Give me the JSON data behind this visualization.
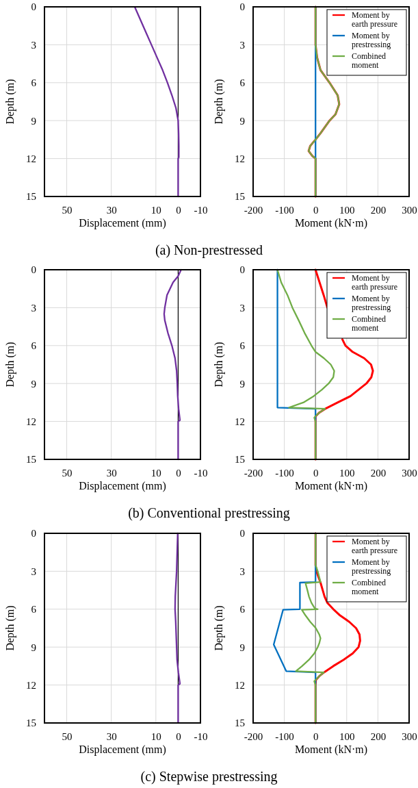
{
  "chart_data": [
    {
      "type": "line",
      "title": "(a) Non-prestressed",
      "xlabel": "Displacement (mm)",
      "ylabel": "Depth (m)",
      "xlim": [
        60,
        -10
      ],
      "xticks": [
        50,
        30,
        10,
        0,
        -10
      ],
      "ylim": [
        15,
        0
      ],
      "yticks": [
        0,
        3,
        6,
        9,
        12,
        15
      ],
      "grid": true,
      "legend": false,
      "ref_lines": [
        {
          "axis": "x",
          "value": 0,
          "color": "#000000"
        }
      ],
      "series": [
        {
          "color": "#7030a0",
          "x": [
            19.5,
            17,
            14.5,
            12,
            9.5,
            7,
            4.8,
            2.8,
            1,
            0,
            -0.2,
            -0.3,
            -0.3,
            0,
            0
          ],
          "values": [
            0,
            1,
            2,
            3,
            4,
            5,
            6,
            7,
            8,
            9,
            10,
            11,
            11.9,
            12,
            15
          ]
        }
      ]
    },
    {
      "type": "line",
      "xlabel": "Moment (kN·m)",
      "ylabel": "Depth (m)",
      "xlim": [
        -200,
        300
      ],
      "xticks": [
        -200,
        -100,
        0,
        100,
        200,
        300
      ],
      "ylim": [
        15,
        0
      ],
      "yticks": [
        0,
        3,
        6,
        9,
        12,
        15
      ],
      "grid": true,
      "legend": "top right",
      "series": [
        {
          "name": "Moment by earth pressure",
          "color": "#ff0000",
          "x": [
            0,
            0,
            5,
            16,
            45,
            71,
            76,
            64,
            45,
            16,
            0,
            -17,
            -22,
            -10,
            0,
            0
          ],
          "values": [
            0,
            3,
            4,
            5,
            6,
            7,
            7.7,
            8.5,
            9,
            10,
            10.5,
            11,
            11.4,
            11.8,
            12,
            15
          ]
        },
        {
          "name": "Moment by prestressing",
          "color": "#0070c0",
          "x": [
            0,
            0
          ],
          "values": [
            0,
            15
          ]
        },
        {
          "name": "Combined moment",
          "color": "#70ad47",
          "x": [
            0,
            0,
            5,
            16,
            45,
            71,
            76,
            64,
            45,
            16,
            0,
            -17,
            -22,
            -10,
            0,
            0
          ],
          "values": [
            0,
            3,
            4,
            5,
            6,
            7,
            7.7,
            8.5,
            9,
            10,
            10.5,
            11,
            11.4,
            11.8,
            12,
            15
          ]
        }
      ]
    },
    {
      "type": "line",
      "title": "(b) Conventional prestressing",
      "xlabel": "Displacement (mm)",
      "ylabel": "Depth (m)",
      "xlim": [
        60,
        -10
      ],
      "xticks": [
        50,
        30,
        10,
        0,
        -10
      ],
      "ylim": [
        15,
        0
      ],
      "yticks": [
        0,
        3,
        6,
        9,
        12,
        15
      ],
      "grid": true,
      "legend": false,
      "ref_lines": [
        {
          "axis": "x",
          "value": 0,
          "color": "#000000"
        }
      ],
      "series": [
        {
          "color": "#7030a0",
          "x": [
            -1.3,
            0,
            2.3,
            5,
            6,
            6.3,
            6,
            4.6,
            2.8,
            1.4,
            0.7,
            0.4,
            0.2,
            -0.2,
            -0.8,
            0,
            0
          ],
          "values": [
            0,
            0.5,
            1,
            2,
            3,
            3.5,
            4,
            5,
            6,
            7,
            8,
            9,
            10,
            11,
            11.9,
            12,
            15
          ]
        }
      ]
    },
    {
      "type": "line",
      "xlabel": "Moment (kN·m)",
      "ylabel": "Depth (m)",
      "xlim": [
        -200,
        300
      ],
      "xticks": [
        -200,
        -100,
        0,
        100,
        200,
        300
      ],
      "ylim": [
        15,
        0
      ],
      "yticks": [
        0,
        3,
        6,
        9,
        12,
        15
      ],
      "grid": true,
      "legend": "top right",
      "ref_lines": [
        {
          "axis": "x",
          "value": 0,
          "color": "#808080"
        }
      ],
      "series": [
        {
          "name": "Moment by earth pressure",
          "color": "#ff0000",
          "x": [
            0,
            13,
            26,
            38,
            null,
            86,
            96,
            119,
            156,
            178,
            184,
            179,
            163,
            112,
            71,
            31,
            12,
            0,
            0
          ],
          "values": [
            0,
            1,
            2,
            3,
            null,
            5.5,
            6,
            6.5,
            7,
            7.5,
            8,
            8.5,
            9,
            10,
            10.5,
            11,
            11.3,
            11.6,
            15
          ]
        },
        {
          "name": "Moment by prestressing",
          "color": "#0070c0",
          "x": [
            -122,
            -122,
            0,
            0
          ],
          "values": [
            0,
            10.9,
            11,
            15
          ]
        },
        {
          "name": "Combined moment",
          "color": "#70ad47",
          "x": [
            -122,
            -110,
            -90,
            -74,
            -54,
            -35,
            -13,
            0,
            27,
            49,
            60,
            57,
            42,
            20,
            -6,
            -39,
            -85,
            31,
            12,
            -4,
            0,
            0
          ],
          "values": [
            0,
            1,
            2,
            3,
            4,
            5,
            6,
            6.5,
            7,
            7.5,
            8,
            8.5,
            9,
            9.5,
            10,
            10.5,
            10.9,
            11,
            11.3,
            11.7,
            12,
            15
          ]
        }
      ]
    },
    {
      "type": "line",
      "title": "(c) Stepwise prestressing",
      "xlabel": "Displacement (mm)",
      "ylabel": "Depth (m)",
      "xlim": [
        60,
        -10
      ],
      "xticks": [
        50,
        30,
        10,
        0,
        -10
      ],
      "ylim": [
        15,
        0
      ],
      "yticks": [
        0,
        3,
        6,
        9,
        12,
        15
      ],
      "grid": true,
      "legend": false,
      "ref_lines": [
        {
          "axis": "x",
          "value": 0,
          "color": "#000000"
        }
      ],
      "series": [
        {
          "color": "#7030a0",
          "x": [
            0.2,
            0.7,
            1.3,
            1.4,
            1.1,
            0.7,
            0.5,
            -0.1,
            -0.8,
            0,
            0
          ],
          "values": [
            0,
            3,
            5,
            6,
            7,
            9,
            10,
            11,
            11.9,
            12,
            15
          ]
        }
      ]
    },
    {
      "type": "line",
      "xlabel": "Moment (kN·m)",
      "ylabel": "Depth (m)",
      "xlim": [
        -200,
        300
      ],
      "xticks": [
        -200,
        -100,
        0,
        100,
        200,
        300
      ],
      "ylim": [
        15,
        0
      ],
      "yticks": [
        0,
        3,
        6,
        9,
        12,
        15
      ],
      "grid": true,
      "legend": "top right",
      "ref_lines": [
        {
          "axis": "x",
          "value": 0,
          "color": "#808080"
        }
      ],
      "series": [
        {
          "name": "Moment by earth pressure",
          "color": "#ff0000",
          "x": [
            0,
            0,
            3,
            16,
            29,
            38,
            57,
            79,
            108,
            130,
            141,
            143,
            138,
            119,
            90,
            57,
            27,
            12,
            1,
            0,
            0
          ],
          "values": [
            0,
            2.5,
            3,
            3.9,
            5,
            5.5,
            6,
            6.5,
            7,
            7.5,
            8,
            8.5,
            9,
            9.5,
            10,
            10.5,
            11,
            11.3,
            11.6,
            12,
            15
          ]
        },
        {
          "name": "Moment by prestressing",
          "color": "#0070c0",
          "x": [
            0,
            0,
            -50,
            -50,
            -104,
            -134,
            -94,
            0,
            0
          ],
          "values": [
            0,
            3.85,
            3.9,
            6,
            6.05,
            8.8,
            10.9,
            11,
            15
          ]
        },
        {
          "name": "Combined moment",
          "color": "#70ad47",
          "x": [
            0,
            0,
            7,
            16,
            -32,
            -26,
            -21,
            -13,
            -2,
            7,
            -44,
            -32,
            -17,
            1,
            12,
            16,
            12,
            7,
            -4,
            -21,
            -43,
            -63,
            27,
            12,
            0,
            -4,
            0,
            0
          ],
          "values": [
            0,
            2.5,
            3,
            3.85,
            3.95,
            4.5,
            5,
            5.5,
            5.95,
            6,
            6.05,
            6.5,
            7,
            7.5,
            8,
            8.3,
            8.7,
            9,
            9.5,
            10,
            10.5,
            10.9,
            11,
            11.3,
            11.6,
            11.7,
            12,
            15
          ]
        }
      ]
    }
  ]
}
